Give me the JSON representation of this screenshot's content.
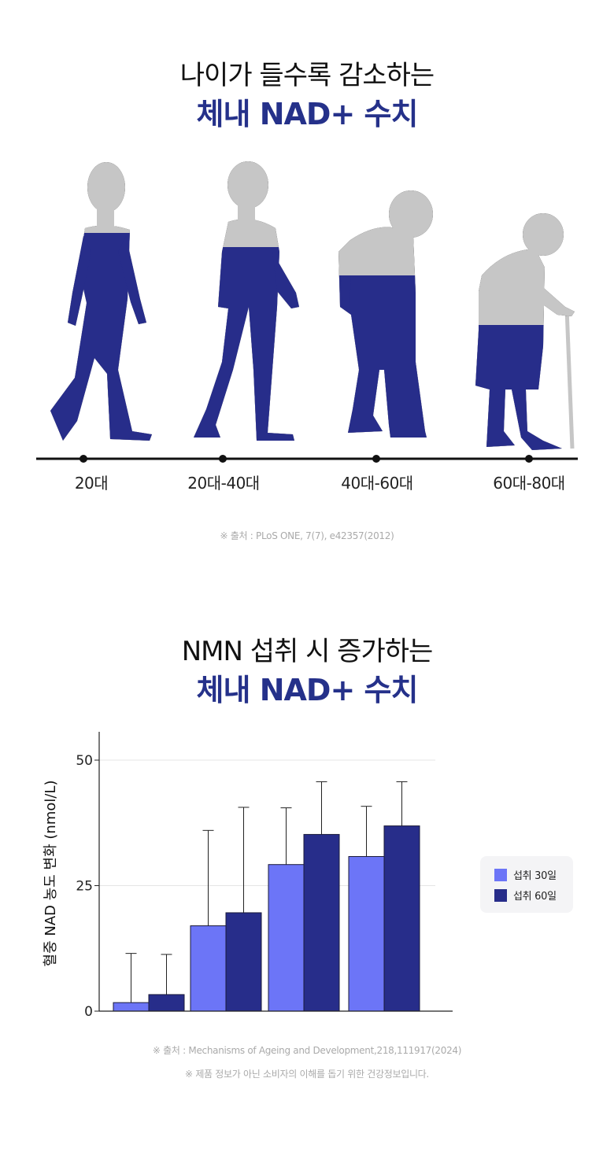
{
  "section1": {
    "title_line1": "나이가 들수록 감소하는",
    "title_line2": "체내 NAD+ 수치",
    "ages": [
      "20대",
      "20대-40대",
      "40대-60대",
      "60대-80대"
    ],
    "source": "※ 출처 : PLoS ONE, 7(7), e42357(2012)"
  },
  "section2": {
    "title_line1": "NMN 섭취 시 증가하는",
    "title_line2": "체내 NAD+ 수치",
    "source": "※ 출처 : Mechanisms of Ageing and Development,218,111917(2024)",
    "disclaimer": "※ 제품 정보가 아닌 소비자의 이해를 돕기 위한 건강정보입니다."
  },
  "colors": {
    "navy": "#272d8a",
    "light_blue": "#6c75f7",
    "gray": "#c6c6c6",
    "title_blue": "#25318a"
  },
  "chart_data": {
    "type": "bar",
    "ylabel": "혈중 NAD 농도 변화 (nmol/L)",
    "yticks": [
      0,
      25,
      50
    ],
    "ylim": [
      0,
      56
    ],
    "categories": [
      "",
      "",
      "",
      ""
    ],
    "series": [
      {
        "name": "섭취 30일",
        "values": [
          1.7,
          17,
          29.2,
          30.8
        ],
        "errors": [
          9.8,
          19,
          11.3,
          10
        ]
      },
      {
        "name": "섭취 60일",
        "values": [
          3.3,
          19.6,
          35.2,
          36.9
        ],
        "errors": [
          8,
          21,
          10.5,
          8.8
        ]
      }
    ]
  }
}
